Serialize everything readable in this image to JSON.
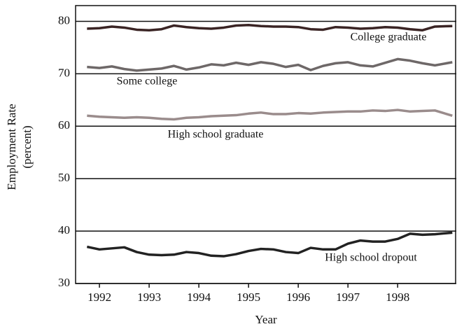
{
  "chart_data": {
    "type": "line",
    "xlabel": "Year",
    "ylabel": [
      "Employment Rate",
      "(percent)"
    ],
    "x": [
      1991.75,
      1992,
      1992.25,
      1992.5,
      1992.75,
      1993,
      1993.25,
      1993.5,
      1993.75,
      1994,
      1994.25,
      1994.5,
      1994.75,
      1995,
      1995.25,
      1995.5,
      1995.75,
      1996,
      1996.25,
      1996.5,
      1996.75,
      1997,
      1997.25,
      1997.5,
      1997.75,
      1998,
      1998.25,
      1998.5,
      1998.75,
      1999.1
    ],
    "series": [
      {
        "name": "College graduate",
        "color": "#3a2424",
        "values": [
          78.6,
          78.7,
          79.0,
          78.8,
          78.4,
          78.3,
          78.5,
          79.2,
          78.9,
          78.7,
          78.6,
          78.8,
          79.2,
          79.3,
          79.1,
          79.0,
          79.0,
          78.9,
          78.5,
          78.4,
          78.9,
          78.8,
          78.6,
          78.7,
          78.9,
          78.8,
          78.5,
          78.3,
          79.0,
          79.1
        ]
      },
      {
        "name": "Some college",
        "color": "#6e6868",
        "values": [
          71.3,
          71.1,
          71.4,
          70.9,
          70.6,
          70.8,
          71.0,
          71.5,
          70.8,
          71.2,
          71.8,
          71.6,
          72.1,
          71.7,
          72.2,
          71.9,
          71.3,
          71.7,
          70.7,
          71.5,
          72.0,
          72.2,
          71.6,
          71.4,
          72.1,
          72.8,
          72.5,
          72.0,
          71.6,
          72.2
        ]
      },
      {
        "name": "High school graduate",
        "color": "#9a8c8c",
        "values": [
          62.0,
          61.8,
          61.7,
          61.6,
          61.7,
          61.6,
          61.4,
          61.3,
          61.6,
          61.7,
          61.9,
          62.0,
          62.1,
          62.4,
          62.6,
          62.3,
          62.3,
          62.5,
          62.4,
          62.6,
          62.7,
          62.8,
          62.8,
          63.0,
          62.9,
          63.1,
          62.8,
          62.9,
          63.0,
          62.0
        ]
      },
      {
        "name": "High school dropout",
        "color": "#222222",
        "values": [
          37.0,
          36.5,
          36.7,
          36.9,
          36.0,
          35.5,
          35.4,
          35.5,
          36.0,
          35.8,
          35.3,
          35.2,
          35.6,
          36.2,
          36.6,
          36.5,
          36.0,
          35.8,
          36.8,
          36.5,
          36.5,
          37.6,
          38.2,
          38.0,
          38.0,
          38.5,
          39.5,
          39.3,
          39.4,
          39.7
        ]
      }
    ],
    "xlim": [
      1991.52,
      1999.18
    ],
    "xticks": [
      1992,
      1993,
      1994,
      1995,
      1996,
      1997,
      1998
    ],
    "ylim": [
      30,
      83
    ],
    "yticks": [
      30,
      40,
      50,
      60,
      70,
      80
    ],
    "grid": true
  }
}
